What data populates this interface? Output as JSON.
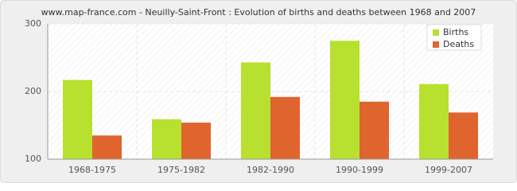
{
  "chart_data": {
    "type": "bar",
    "title": "www.map-france.com - Neuilly-Saint-Front : Evolution of births and deaths between 1968 and 2007",
    "categories": [
      "1968-1975",
      "1975-1982",
      "1982-1990",
      "1990-1999",
      "1999-2007"
    ],
    "series": [
      {
        "name": "Births",
        "color": "#b8e02e",
        "values": [
          217,
          159,
          243,
          275,
          211
        ]
      },
      {
        "name": "Deaths",
        "color": "#e0642e",
        "values": [
          135,
          154,
          192,
          185,
          169
        ]
      }
    ],
    "ylim": [
      100,
      300
    ],
    "yticks": [
      100,
      200,
      300
    ],
    "grid": true,
    "legend": "top-right"
  }
}
